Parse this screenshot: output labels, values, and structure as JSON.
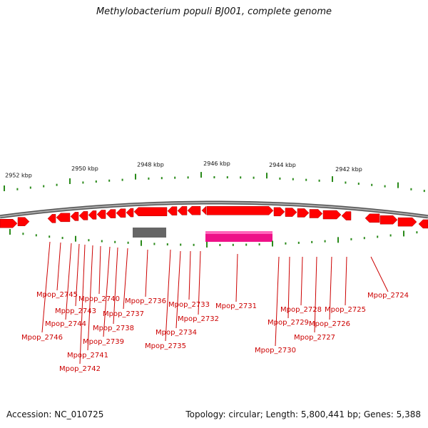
{
  "title": "Methylobacterium populi BJ001, complete genome",
  "footer": {
    "accession": "Accession: NC_010725",
    "topology": "Topology: circular; Length: 5,800,441 bp; Genes: 5,388"
  },
  "scale_labels": [
    "2952 kbp",
    "2950 kbp",
    "2948 kbp",
    "2946 kbp",
    "2944 kbp",
    "2942 kbp"
  ],
  "colors": {
    "gene_forward": "#ff0000",
    "gene_highlight": "#ee1188",
    "gene_other": "#666666",
    "backbone": "#888888",
    "ticks": "#2a8a1a",
    "labels": "#cc0000"
  },
  "gene_labels": [
    "Mpop_2724",
    "Mpop_2725",
    "Mpop_2726",
    "Mpop_2727",
    "Mpop_2728",
    "Mpop_2729",
    "Mpop_2730",
    "Mpop_2731",
    "Mpop_2732",
    "Mpop_2733",
    "Mpop_2734",
    "Mpop_2735",
    "Mpop_2736",
    "Mpop_2737",
    "Mpop_2738",
    "Mpop_2739",
    "Mpop_2740",
    "Mpop_2741",
    "Mpop_2742",
    "Mpop_2743",
    "Mpop_2744",
    "Mpop_2745",
    "Mpop_2746"
  ]
}
